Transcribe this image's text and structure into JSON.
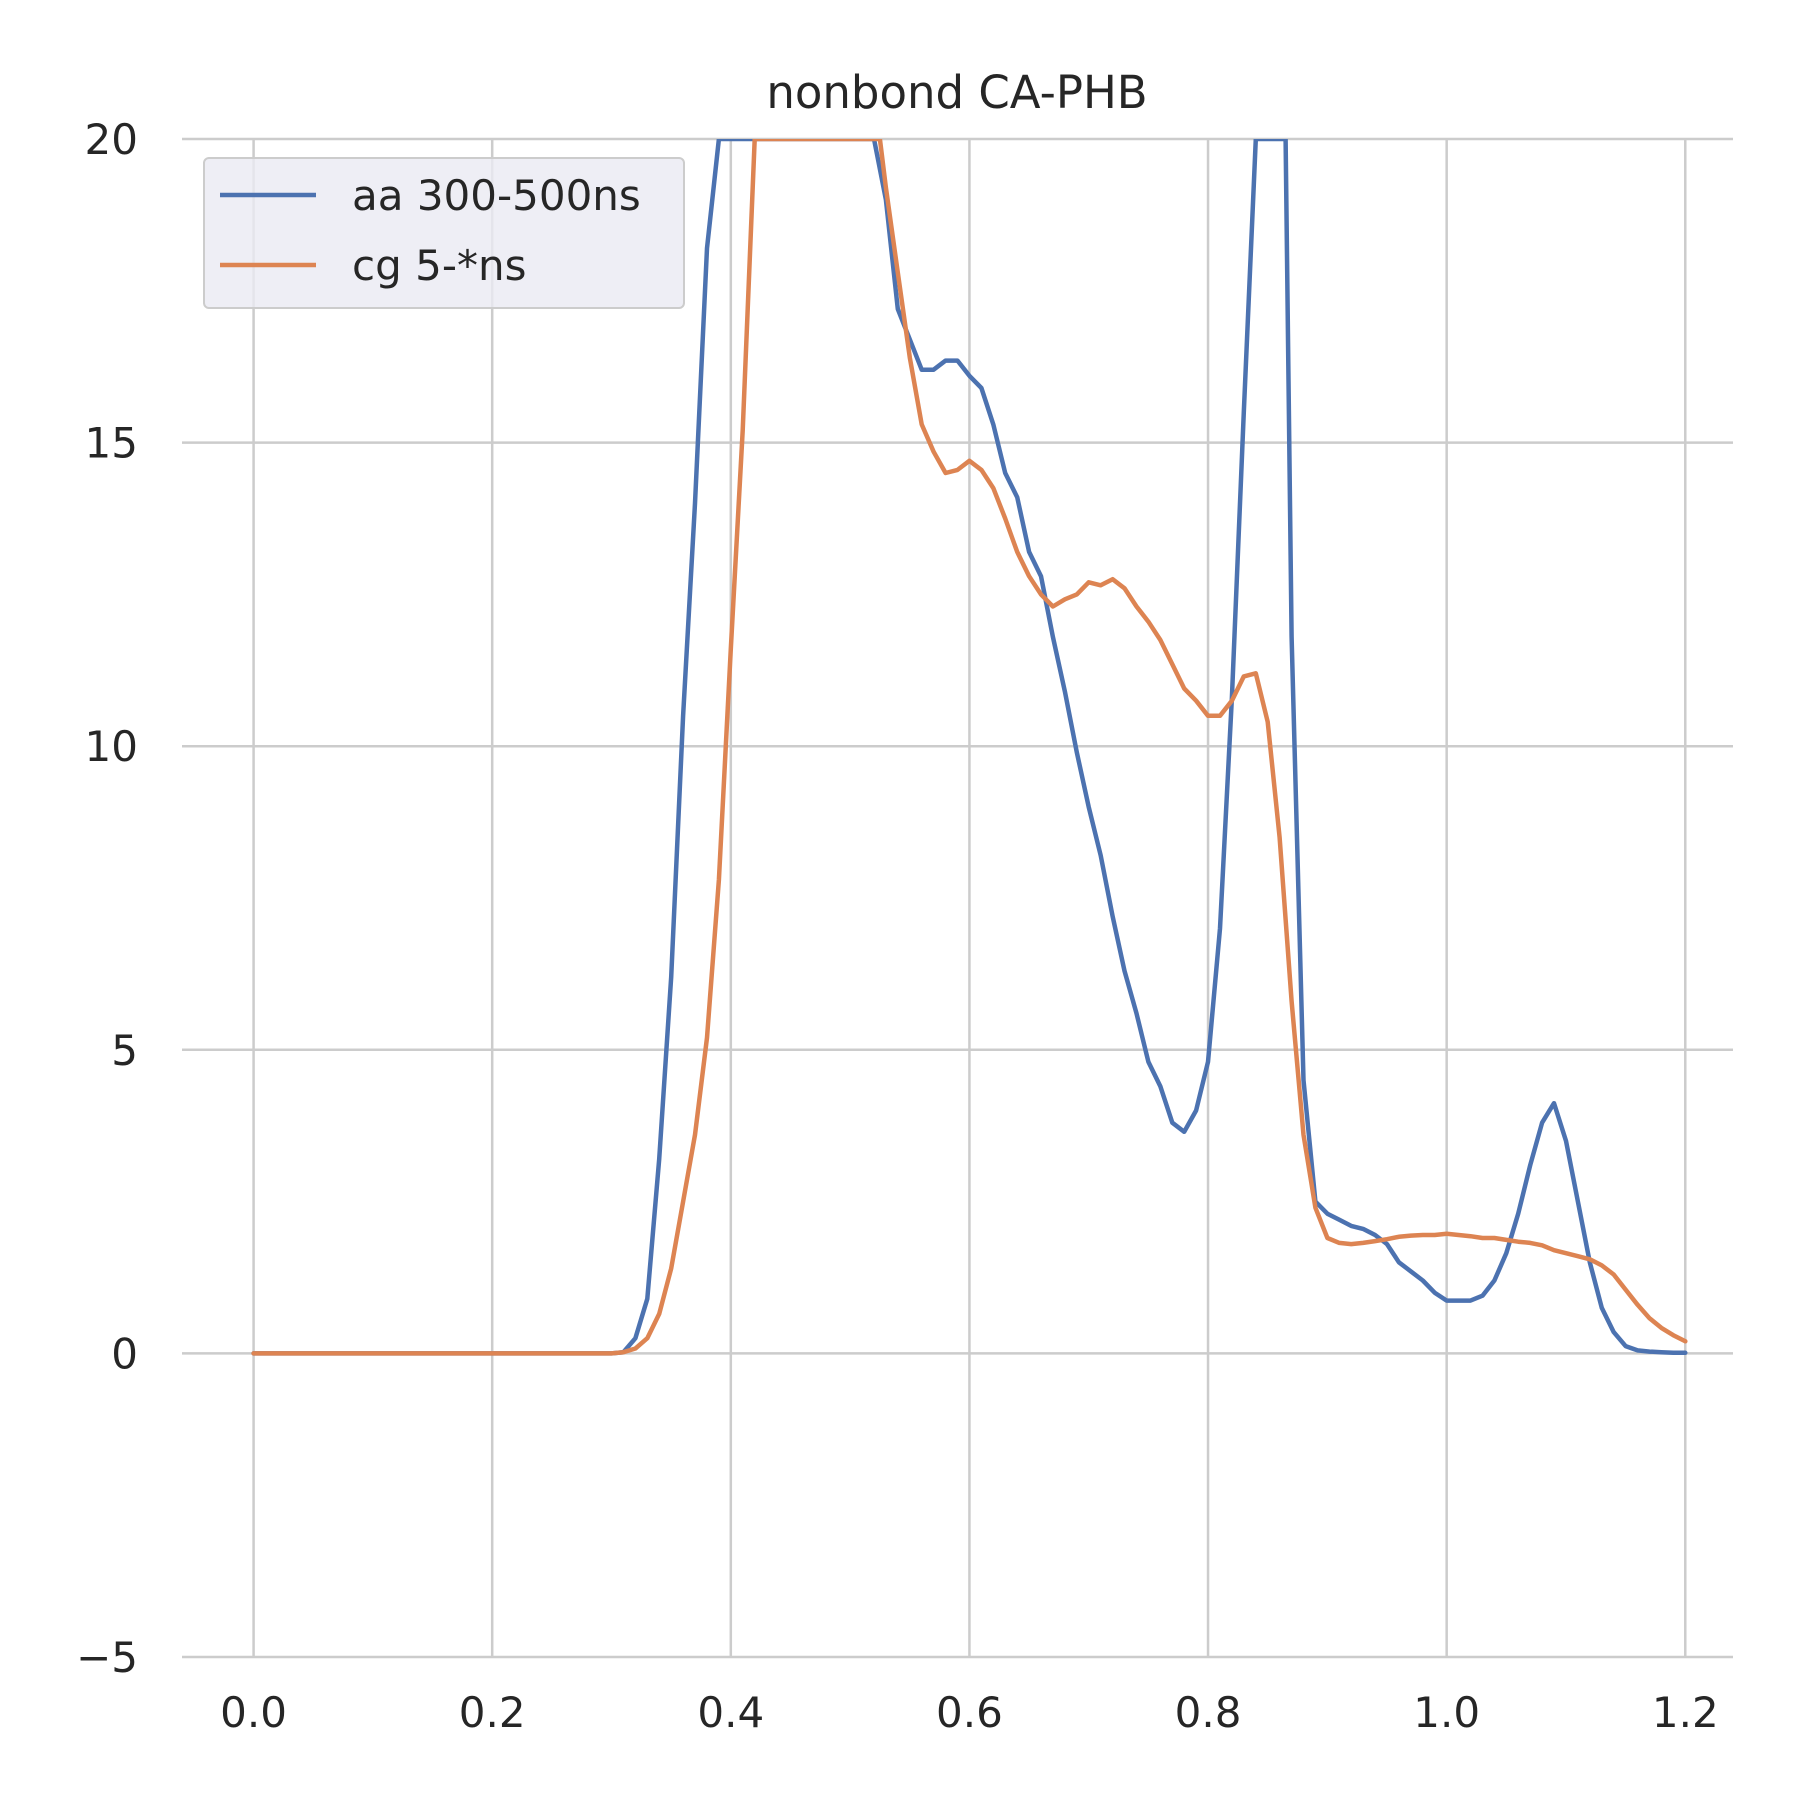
{
  "chart_data": {
    "type": "line",
    "title": "nonbond CA-PHB",
    "xlabel": "",
    "ylabel": "",
    "xlim": [
      -0.06,
      1.24
    ],
    "ylim": [
      -5,
      20
    ],
    "xticks": [
      0.0,
      0.2,
      0.4,
      0.6,
      0.8,
      1.0,
      1.2
    ],
    "xtick_labels": [
      "0.0",
      "0.2",
      "0.4",
      "0.6",
      "0.8",
      "1.0",
      "1.2"
    ],
    "yticks": [
      -5,
      0,
      5,
      10,
      15,
      20
    ],
    "ytick_labels": [
      "−5",
      "0",
      "5",
      "10",
      "15",
      "20"
    ],
    "grid": true,
    "legend_position": "top-left",
    "series": [
      {
        "name": "aa 300-500ns",
        "color": "#4c72b0",
        "x": [
          0.0,
          0.05,
          0.1,
          0.15,
          0.2,
          0.25,
          0.3,
          0.31,
          0.32,
          0.33,
          0.34,
          0.35,
          0.36,
          0.37,
          0.38,
          0.39,
          0.52,
          0.53,
          0.54,
          0.55,
          0.56,
          0.57,
          0.58,
          0.59,
          0.6,
          0.61,
          0.62,
          0.63,
          0.64,
          0.65,
          0.66,
          0.67,
          0.68,
          0.69,
          0.7,
          0.71,
          0.72,
          0.73,
          0.74,
          0.75,
          0.76,
          0.77,
          0.78,
          0.79,
          0.8,
          0.81,
          0.82,
          0.83,
          0.84,
          0.865,
          0.87,
          0.88,
          0.89,
          0.9,
          0.91,
          0.92,
          0.93,
          0.94,
          0.95,
          0.96,
          0.97,
          0.98,
          0.99,
          1.0,
          1.01,
          1.02,
          1.03,
          1.04,
          1.05,
          1.06,
          1.07,
          1.08,
          1.09,
          1.1,
          1.11,
          1.12,
          1.13,
          1.14,
          1.15,
          1.16,
          1.17,
          1.18,
          1.19,
          1.2
        ],
        "y": [
          0,
          0,
          0,
          0,
          0,
          0,
          0,
          0.02,
          0.25,
          0.9,
          3.2,
          6.2,
          10.5,
          14.0,
          18.2,
          20,
          20,
          19.0,
          17.2,
          16.7,
          16.2,
          16.2,
          16.35,
          16.35,
          16.1,
          15.9,
          15.3,
          14.5,
          14.1,
          13.2,
          12.8,
          11.8,
          10.9,
          9.9,
          9.0,
          8.2,
          7.2,
          6.3,
          5.6,
          4.8,
          4.4,
          3.8,
          3.65,
          4.0,
          4.8,
          7.0,
          10.8,
          15.5,
          20,
          20,
          11.8,
          4.5,
          2.5,
          2.3,
          2.2,
          2.1,
          2.05,
          1.95,
          1.8,
          1.5,
          1.35,
          1.2,
          1.0,
          0.87,
          0.87,
          0.87,
          0.95,
          1.2,
          1.65,
          2.3,
          3.1,
          3.8,
          4.12,
          3.5,
          2.5,
          1.5,
          0.75,
          0.35,
          0.12,
          0.05,
          0.03,
          0.02,
          0.01,
          0.01
        ]
      },
      {
        "name": "cg 5-*ns",
        "color": "#dd8452",
        "x": [
          0.0,
          0.05,
          0.1,
          0.15,
          0.2,
          0.25,
          0.3,
          0.31,
          0.32,
          0.33,
          0.34,
          0.35,
          0.36,
          0.37,
          0.38,
          0.39,
          0.4,
          0.41,
          0.42,
          0.525,
          0.53,
          0.54,
          0.55,
          0.56,
          0.57,
          0.58,
          0.59,
          0.6,
          0.61,
          0.62,
          0.63,
          0.64,
          0.65,
          0.66,
          0.67,
          0.68,
          0.69,
          0.7,
          0.71,
          0.72,
          0.73,
          0.74,
          0.75,
          0.76,
          0.77,
          0.78,
          0.79,
          0.8,
          0.81,
          0.82,
          0.83,
          0.84,
          0.85,
          0.86,
          0.87,
          0.88,
          0.89,
          0.9,
          0.91,
          0.92,
          0.93,
          0.94,
          0.95,
          0.96,
          0.97,
          0.98,
          0.99,
          1.0,
          1.01,
          1.02,
          1.03,
          1.04,
          1.05,
          1.06,
          1.07,
          1.08,
          1.09,
          1.1,
          1.11,
          1.12,
          1.13,
          1.14,
          1.15,
          1.16,
          1.17,
          1.18,
          1.19,
          1.2
        ],
        "y": [
          0,
          0,
          0,
          0,
          0,
          0,
          0,
          0.02,
          0.08,
          0.25,
          0.65,
          1.4,
          2.5,
          3.6,
          5.2,
          7.8,
          11.6,
          15.2,
          20,
          20,
          19.2,
          17.8,
          16.4,
          15.3,
          14.85,
          14.5,
          14.55,
          14.7,
          14.55,
          14.25,
          13.75,
          13.2,
          12.8,
          12.5,
          12.3,
          12.42,
          12.5,
          12.7,
          12.65,
          12.75,
          12.6,
          12.3,
          12.05,
          11.75,
          11.35,
          10.95,
          10.75,
          10.5,
          10.5,
          10.75,
          11.15,
          11.2,
          10.4,
          8.5,
          5.8,
          3.6,
          2.4,
          1.9,
          1.82,
          1.8,
          1.82,
          1.85,
          1.88,
          1.92,
          1.94,
          1.95,
          1.95,
          1.97,
          1.95,
          1.93,
          1.9,
          1.9,
          1.87,
          1.84,
          1.82,
          1.78,
          1.7,
          1.65,
          1.6,
          1.55,
          1.45,
          1.3,
          1.05,
          0.8,
          0.58,
          0.42,
          0.3,
          0.2
        ]
      }
    ]
  }
}
